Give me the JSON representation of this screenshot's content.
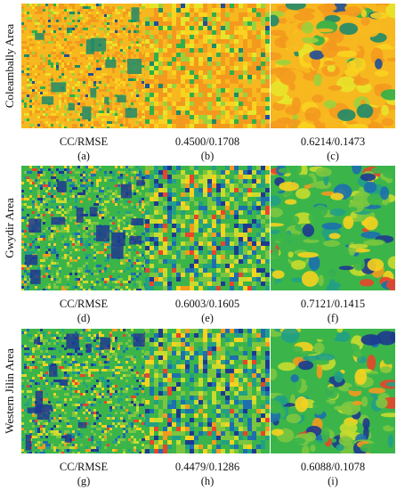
{
  "rows": [
    {
      "area": "Coleambally Area",
      "palette": "orange",
      "panels": [
        {
          "metric": "CC/RMSE",
          "label": "(a)",
          "texture": "fine"
        },
        {
          "metric": "0.4500/0.1708",
          "label": "(b)",
          "texture": "blocky"
        },
        {
          "metric": "0.6214/0.1473",
          "label": "(c)",
          "texture": "smooth"
        }
      ]
    },
    {
      "area": "Gwydir Area",
      "palette": "green",
      "panels": [
        {
          "metric": "CC/RMSE",
          "label": "(d)",
          "texture": "fine"
        },
        {
          "metric": "0.6003/0.1605",
          "label": "(e)",
          "texture": "blocky"
        },
        {
          "metric": "0.7121/0.1415",
          "label": "(f)",
          "texture": "smooth"
        }
      ]
    },
    {
      "area": "Western Jilin Area",
      "palette": "green",
      "panels": [
        {
          "metric": "CC/RMSE",
          "label": "(g)",
          "texture": "fine"
        },
        {
          "metric": "0.4479/0.1286",
          "label": "(h)",
          "texture": "blocky"
        },
        {
          "metric": "0.6088/0.1078",
          "label": "(i)",
          "texture": "smooth"
        }
      ]
    }
  ],
  "colors": {
    "orange_palette": [
      "#f39a1e",
      "#f7b81f",
      "#fad320",
      "#e7e52a",
      "#9bd23c",
      "#2fb04a",
      "#1e8a6a",
      "#1f4f95"
    ],
    "green_palette": [
      "#1e3a8f",
      "#1d6fae",
      "#22a085",
      "#3bb54a",
      "#7cc63f",
      "#c8dc2e",
      "#f7d21f",
      "#f39a1e",
      "#e8452a"
    ]
  }
}
